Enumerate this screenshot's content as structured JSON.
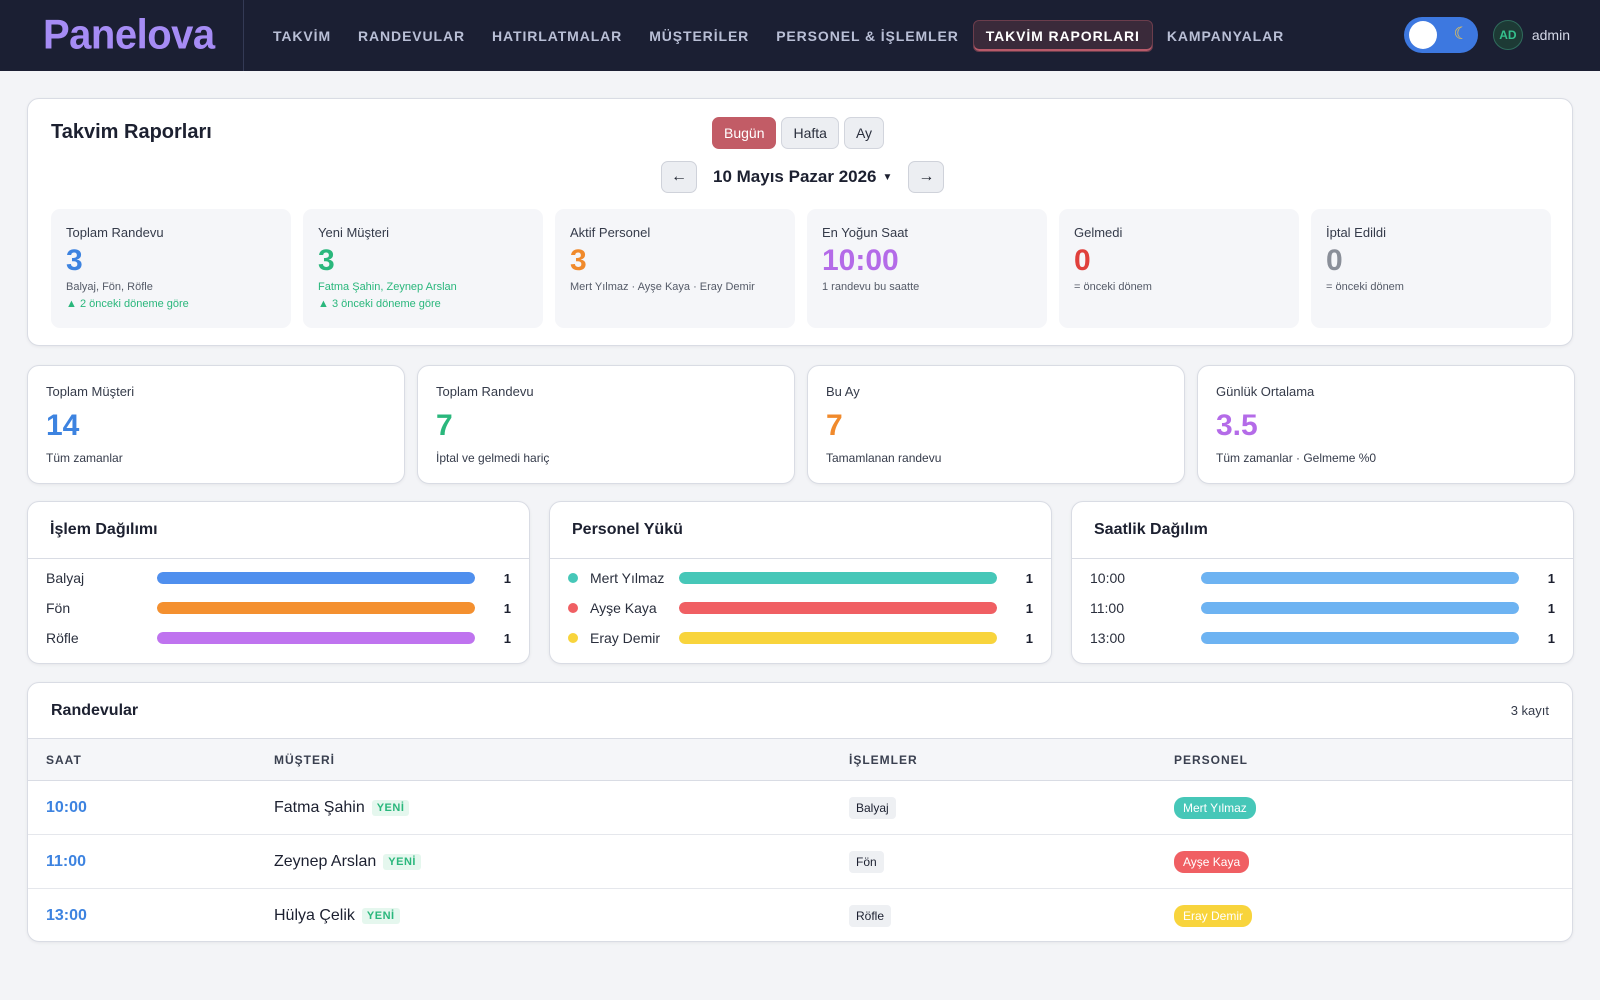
{
  "app": {
    "logo": "Panelova"
  },
  "nav": {
    "items": [
      "TAKVİM",
      "RANDEVULAR",
      "HATIRLATMALAR",
      "MÜŞTERİLER",
      "PERSONEL & İŞLEMLER",
      "TAKVİM RAPORLARI",
      "KAMPANYALAR"
    ],
    "active_index": 5,
    "toggle_icon": "moon-icon",
    "avatar": "AD",
    "user": "admin"
  },
  "report": {
    "title": "Takvim Raporları",
    "periods": [
      "Bugün",
      "Hafta",
      "Ay"
    ],
    "active_period": "Bugün",
    "date": "10 Mayıs Pazar 2026",
    "prev_icon": "arrow-left-icon",
    "next_icon": "arrow-right-icon",
    "stats": [
      {
        "label": "Toplam Randevu",
        "value": "3",
        "color": "#3d83e0",
        "sub": "Balyaj, Fön, Röfle",
        "trend": "▲ 2 önceki döneme göre"
      },
      {
        "label": "Yeni Müşteri",
        "value": "3",
        "color": "#2ab77c",
        "sub": "Fatma Şahin, Zeynep Arslan",
        "sub_color": "#2ab77c",
        "trend": "▲ 3 önceki döneme göre"
      },
      {
        "label": "Aktif Personel",
        "value": "3",
        "color": "#f08a2c",
        "sub": "Mert Yılmaz · Ayşe Kaya · Eray Demir"
      },
      {
        "label": "En Yoğun Saat",
        "value": "10:00",
        "color": "#b46be8",
        "sub": "1 randevu bu saatte"
      },
      {
        "label": "Gelmedi",
        "value": "0",
        "color": "#e0403c",
        "sub": "= önceki dönem"
      },
      {
        "label": "İptal Edildi",
        "value": "0",
        "color": "#8a8f99",
        "sub": "= önceki dönem"
      }
    ]
  },
  "kpis": [
    {
      "label": "Toplam Müşteri",
      "value": "14",
      "color": "#3d83e0",
      "sub": "Tüm zamanlar"
    },
    {
      "label": "Toplam Randevu",
      "value": "7",
      "color": "#2ab77c",
      "sub": "İptal ve gelmedi hariç"
    },
    {
      "label": "Bu Ay",
      "value": "7",
      "color": "#f08a2c",
      "sub": "Tamamlanan randevu"
    },
    {
      "label": "Günlük Ortalama",
      "value": "3.5",
      "color": "#b46be8",
      "sub": "Tüm zamanlar · Gelmeme %0"
    }
  ],
  "panels": [
    {
      "title": "İşlem Dağılımı",
      "rows": [
        {
          "name": "Balyaj",
          "count": "1",
          "fill": 1.0,
          "color": "#4f8fee"
        },
        {
          "name": "Fön",
          "count": "1",
          "fill": 1.0,
          "color": "#f4902f"
        },
        {
          "name": "Röfle",
          "count": "1",
          "fill": 1.0,
          "color": "#bf73ef"
        }
      ]
    },
    {
      "title": "Personel Yükü",
      "dots": true,
      "rows": [
        {
          "name": "Mert Yılmaz",
          "count": "1",
          "fill": 1.0,
          "color": "#46c7b8"
        },
        {
          "name": "Ayşe Kaya",
          "count": "1",
          "fill": 1.0,
          "color": "#f05f63"
        },
        {
          "name": "Eray Demir",
          "count": "1",
          "fill": 1.0,
          "color": "#f8d43c"
        }
      ]
    },
    {
      "title": "Saatlik Dağılım",
      "rows": [
        {
          "name": "10:00",
          "count": "1",
          "fill": 1.0,
          "color": "#6db3f2"
        },
        {
          "name": "11:00",
          "count": "1",
          "fill": 1.0,
          "color": "#6db3f2"
        },
        {
          "name": "13:00",
          "count": "1",
          "fill": 1.0,
          "color": "#6db3f2"
        }
      ]
    }
  ],
  "appointments": {
    "title": "Randevular",
    "count": "3 kayıt",
    "columns": [
      "SAAT",
      "MÜŞTERİ",
      "İŞLEMLER",
      "PERSONEL"
    ],
    "new_label": "YENİ",
    "rows": [
      {
        "time": "10:00",
        "customer": "Fatma Şahin",
        "is_new": true,
        "service": "Balyaj",
        "staff": "Mert Yılmaz",
        "staff_color": "#46c7b8"
      },
      {
        "time": "11:00",
        "customer": "Zeynep Arslan",
        "is_new": true,
        "service": "Fön",
        "staff": "Ayşe Kaya",
        "staff_color": "#f05f63"
      },
      {
        "time": "13:00",
        "customer": "Hülya Çelik",
        "is_new": true,
        "service": "Röfle",
        "staff": "Eray Demir",
        "staff_color": "#f8d43c"
      }
    ]
  }
}
